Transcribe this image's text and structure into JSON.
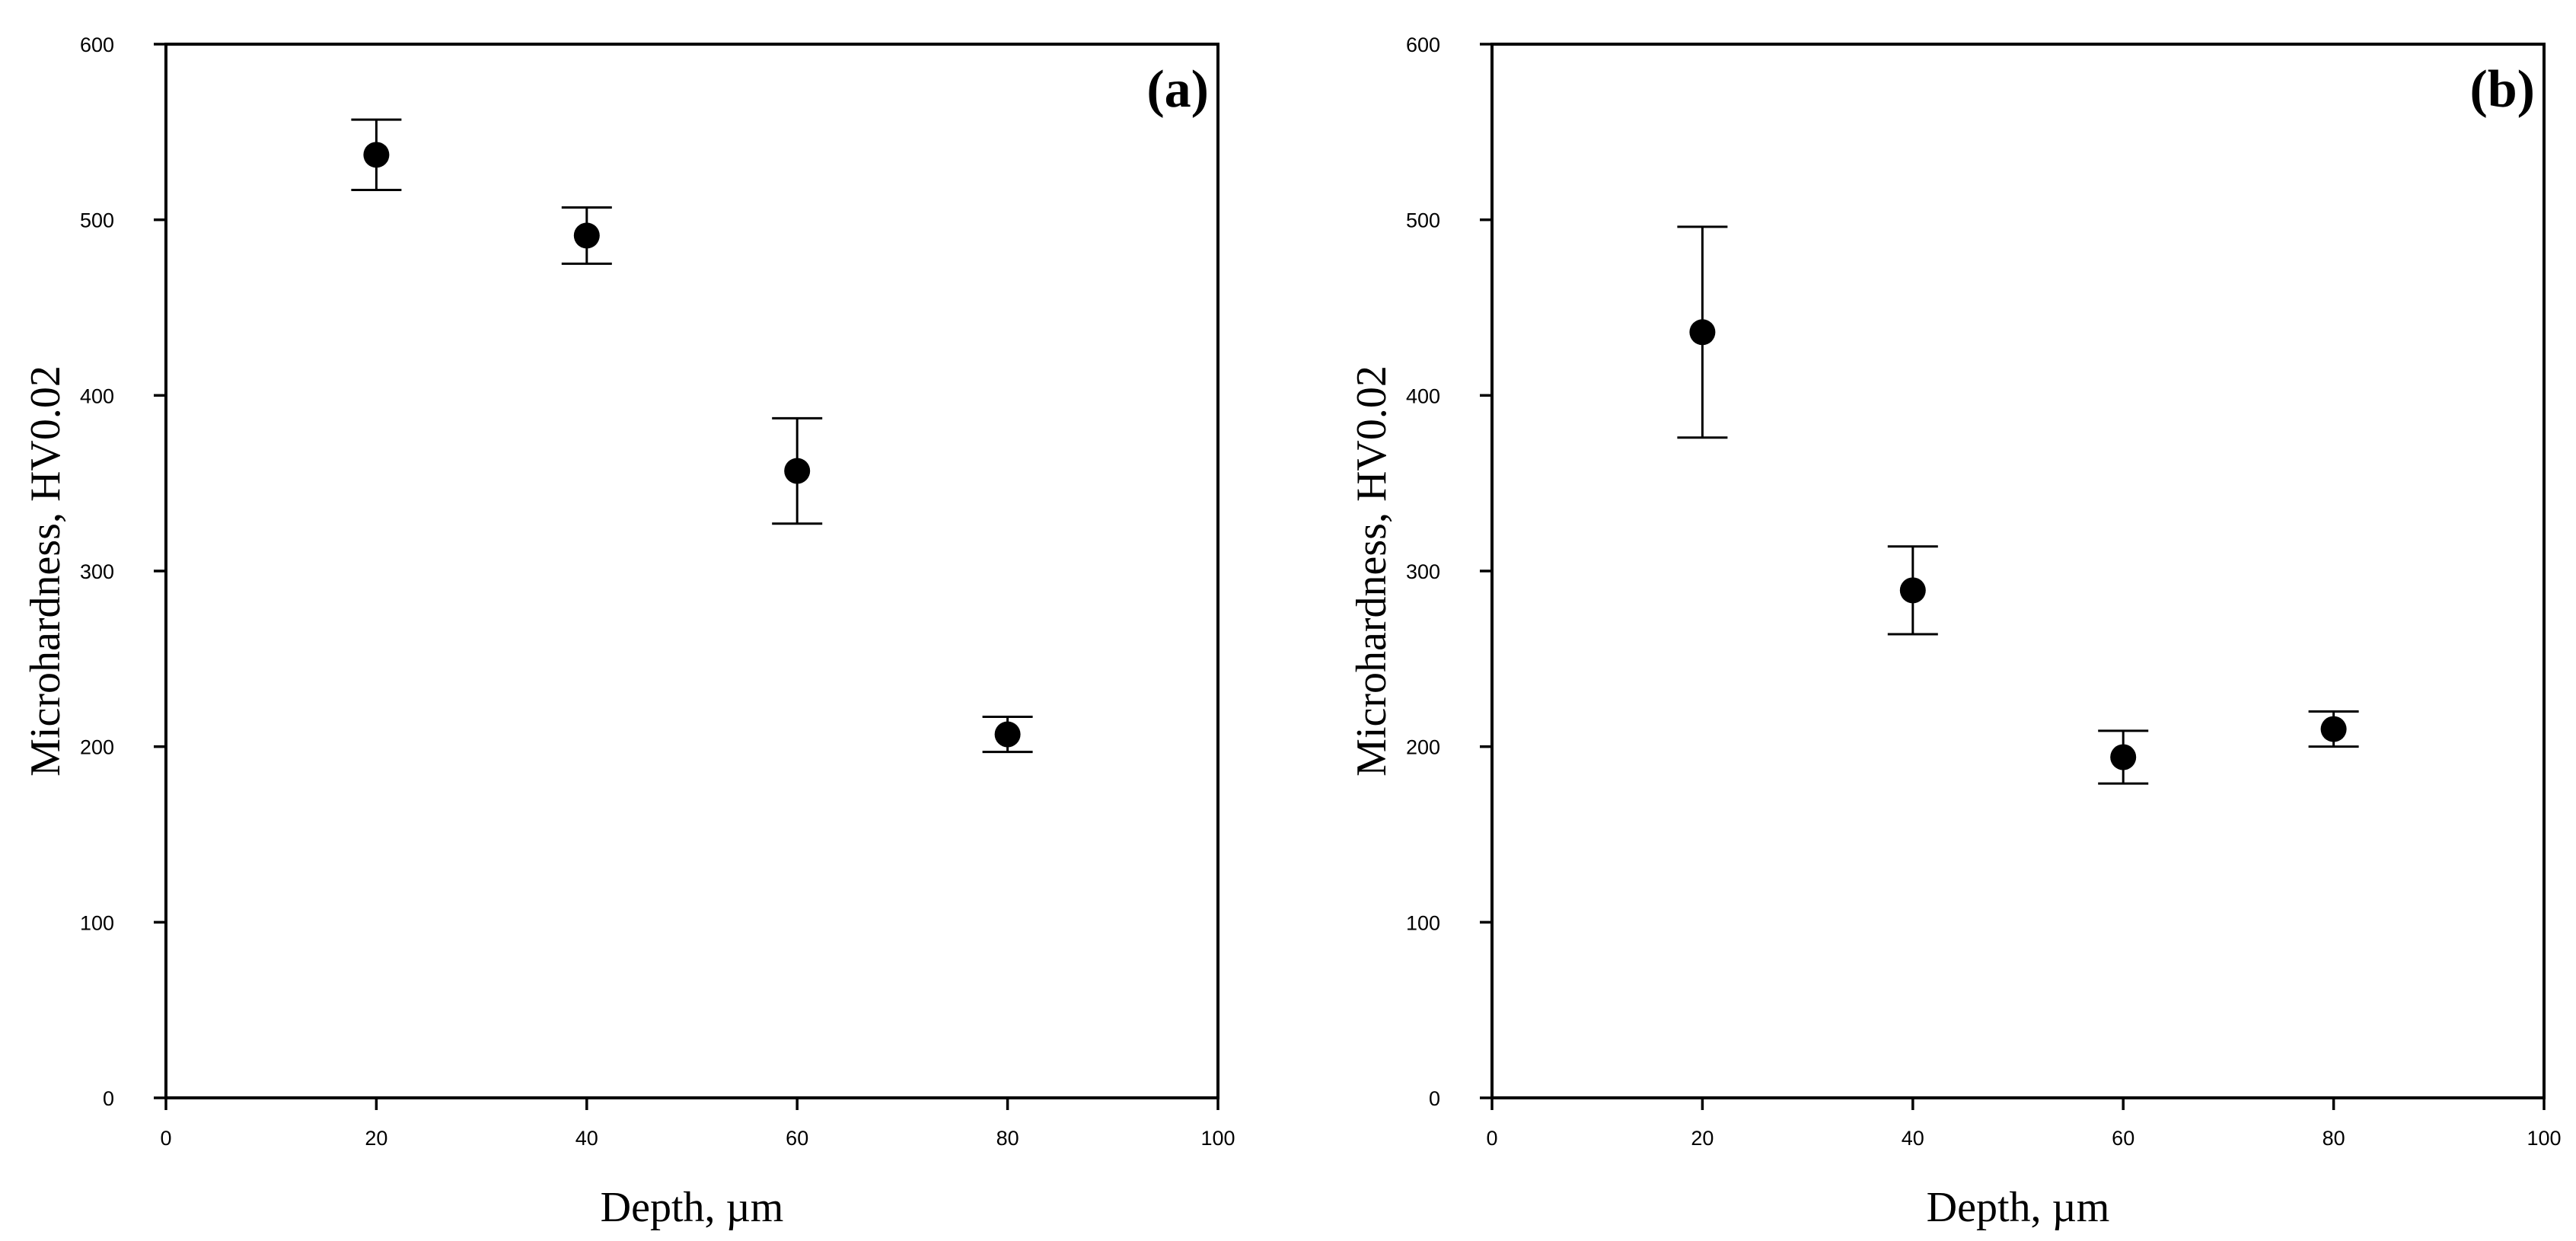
{
  "chart_data": [
    {
      "type": "scatter",
      "panel_label": "(a)",
      "xlabel": "Depth, µm",
      "ylabel": "Microhardness, HV0.02",
      "xlim": [
        0,
        100
      ],
      "ylim": [
        0,
        600
      ],
      "xticks": [
        0,
        20,
        40,
        60,
        80,
        100
      ],
      "yticks": [
        0,
        100,
        200,
        300,
        400,
        500,
        600
      ],
      "grid": false,
      "legend": "none",
      "points": [
        {
          "x": 20,
          "y": 537,
          "err_low": 517,
          "err_high": 557
        },
        {
          "x": 40,
          "y": 491,
          "err_low": 475,
          "err_high": 507
        },
        {
          "x": 60,
          "y": 357,
          "err_low": 327,
          "err_high": 387
        },
        {
          "x": 80,
          "y": 207,
          "err_low": 197,
          "err_high": 217
        }
      ]
    },
    {
      "type": "scatter",
      "panel_label": "(b)",
      "xlabel": "Depth, µm",
      "ylabel": "Microhardness, HV0.02",
      "xlim": [
        0,
        100
      ],
      "ylim": [
        0,
        600
      ],
      "xticks": [
        0,
        20,
        40,
        60,
        80,
        100
      ],
      "yticks": [
        0,
        100,
        200,
        300,
        400,
        500,
        600
      ],
      "grid": false,
      "legend": "none",
      "points": [
        {
          "x": 20,
          "y": 436,
          "err_low": 376,
          "err_high": 496
        },
        {
          "x": 40,
          "y": 289,
          "err_low": 264,
          "err_high": 314
        },
        {
          "x": 60,
          "y": 194,
          "err_low": 179,
          "err_high": 209
        },
        {
          "x": 80,
          "y": 210,
          "err_low": 200,
          "err_high": 220
        }
      ]
    }
  ]
}
